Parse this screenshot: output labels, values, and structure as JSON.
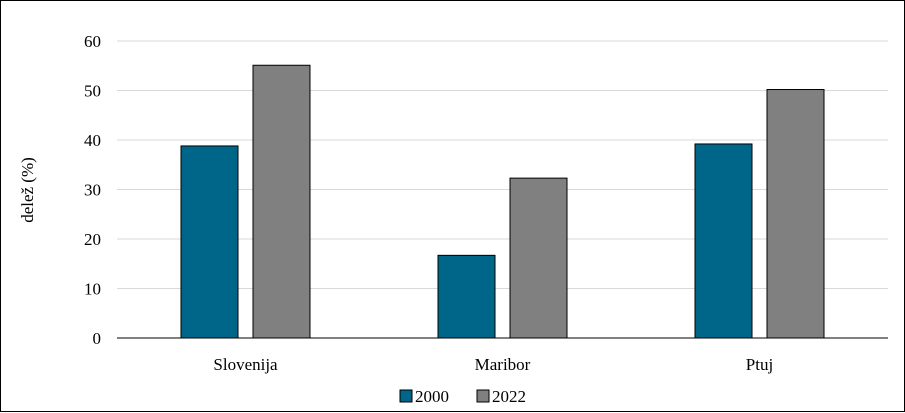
{
  "chart_data": {
    "type": "bar",
    "categories": [
      "Slovenija",
      "Maribor",
      "Ptuj"
    ],
    "series": [
      {
        "name": "2000",
        "values": [
          38.8,
          16.7,
          39.2
        ],
        "color": "#006689"
      },
      {
        "name": "2022",
        "values": [
          55.1,
          32.3,
          50.2
        ],
        "color": "#808080"
      }
    ],
    "ylabel": "delež (%)",
    "ylim": [
      0,
      60
    ],
    "yticks": [
      0,
      10,
      20,
      30,
      40,
      50,
      60
    ],
    "grid": true,
    "legend": "bottom"
  }
}
